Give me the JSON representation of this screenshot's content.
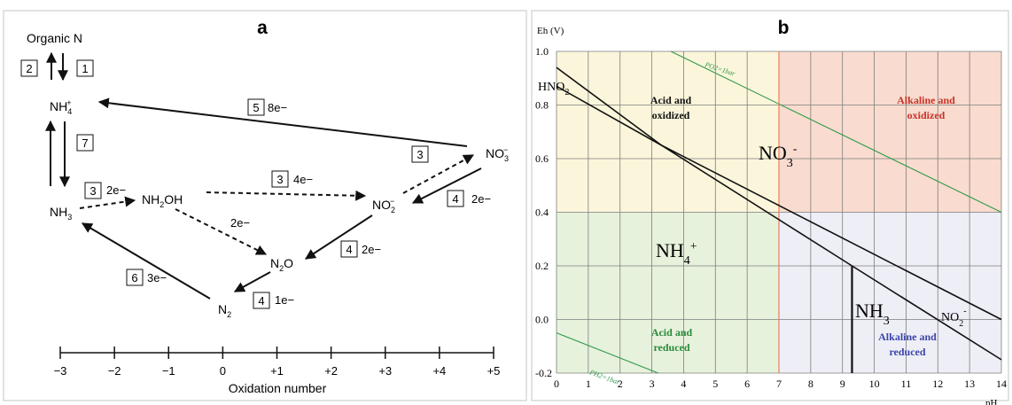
{
  "panel_a": {
    "label": "a",
    "organic_n": "Organic N",
    "nodes": {
      "nh4": {
        "base": "NH",
        "sub": "4",
        "sup": "+"
      },
      "nh3": {
        "base": "NH",
        "sub": "3"
      },
      "nh2oh": {
        "pre": "NH",
        "sub": "2",
        "post": "OH"
      },
      "no2": {
        "base": "NO",
        "sub": "2",
        "sup": "−"
      },
      "no3": {
        "base": "NO",
        "sub": "3",
        "sup": "−"
      },
      "n2o": {
        "pre": "N",
        "sub": "2",
        "post": "O"
      },
      "n2": {
        "base": "N",
        "sub": "2"
      }
    },
    "step_boxes": {
      "s2_org": "2",
      "s1_org": "1",
      "s5": "5",
      "s7": "7",
      "s3_nh3": "3",
      "s3_nh2oh": "3",
      "s3_no2": "3",
      "s4_no3": "4",
      "s4_no2": "4",
      "s4_n2o": "4",
      "s6": "6"
    },
    "electron_labels": {
      "e5": "8e−",
      "e3a": "2e−",
      "e3b": "4e−",
      "e_n2o": "2e−",
      "e4a": "2e−",
      "e4b": "2e−",
      "e4c": "1e−",
      "e6": "3e−"
    },
    "axis": {
      "ticks": [
        "−3",
        "−2",
        "−1",
        "0",
        "+1",
        "+2",
        "+3",
        "+4",
        "+5"
      ],
      "title": "Oxidation number"
    }
  },
  "panel_b": {
    "label": "b",
    "colors": {
      "acid_oxidized": "#fbf6db",
      "alkaline_oxidized": "#f9dccf",
      "acid_reduced": "#e7f2dd",
      "alkaline_reduced": "#eeeef7",
      "grid": "#7d7d7d",
      "water_line": "#2f9a4a",
      "neutral_line": "#f07a5a",
      "boundary": "#111111",
      "label_red": "#c8322a",
      "label_green": "#2c8a3a",
      "label_blue": "#3b45a8"
    },
    "chart_data": {
      "type": "line",
      "title": "",
      "xlabel": "pH",
      "ylabel": "Eh (V)",
      "xlim": [
        0,
        14
      ],
      "ylim": [
        -0.2,
        1.0
      ],
      "x_ticks": [
        "0",
        "1",
        "2",
        "3",
        "4",
        "5",
        "6",
        "7",
        "8",
        "9",
        "10",
        "11",
        "12",
        "13",
        "14"
      ],
      "y_ticks": [
        "-0.2",
        "0.0",
        "0.2",
        "0.4",
        "0.6",
        "0.8",
        "1.0"
      ],
      "grid": true,
      "regions": [
        {
          "name": "Acid and oxidized",
          "x": [
            0,
            7
          ],
          "y": [
            0.4,
            1.0
          ]
        },
        {
          "name": "Alkaline and oxidized",
          "x": [
            7,
            14
          ],
          "y": [
            0.4,
            1.0
          ]
        },
        {
          "name": "Acid and reduced",
          "x": [
            0,
            7
          ],
          "y": [
            -0.2,
            0.4
          ]
        },
        {
          "name": "Alkaline and reduced",
          "x": [
            7,
            14
          ],
          "y": [
            -0.2,
            0.4
          ]
        }
      ],
      "lines": [
        {
          "id": "po2",
          "label": "PO2=1bar",
          "points": [
            [
              3.6,
              1.0
            ],
            [
              14,
              0.4
            ]
          ]
        },
        {
          "id": "ph2",
          "label": "PH2=1bar",
          "points": [
            [
              0,
              -0.05
            ],
            [
              3.2,
              -0.2
            ]
          ]
        },
        {
          "id": "neutral",
          "points": [
            [
              7,
              -0.2
            ],
            [
              7,
              1.0
            ]
          ]
        },
        {
          "id": "hno2_no3_upper",
          "points": [
            [
              0,
              0.94
            ],
            [
              3.3,
              0.65
            ]
          ]
        },
        {
          "id": "hno2_no3_lower",
          "points": [
            [
              0,
              0.87
            ],
            [
              3.3,
              0.65
            ]
          ]
        },
        {
          "id": "no3_nh4",
          "points": [
            [
              3.3,
              0.65
            ],
            [
              9.3,
              0.2
            ]
          ]
        },
        {
          "id": "no3_no2",
          "points": [
            [
              3.3,
              0.65
            ],
            [
              14,
              0.0
            ]
          ]
        },
        {
          "id": "no2_nh3",
          "points": [
            [
              9.3,
              0.2
            ],
            [
              14,
              -0.15
            ]
          ]
        },
        {
          "id": "nh4_nh3",
          "points": [
            [
              9.3,
              0.2
            ],
            [
              9.3,
              -0.2
            ]
          ]
        }
      ],
      "species": {
        "no3": {
          "base": "NO",
          "sub": "3",
          "sup": "-"
        },
        "nh4": {
          "base": "NH",
          "sub": "4",
          "sup": "+"
        },
        "nh3": {
          "base": "NH",
          "sub": "3"
        },
        "no2": {
          "base": "NO",
          "sub": "2",
          "sup": "-"
        },
        "hno2": {
          "base": "HNO",
          "sub": "2"
        }
      },
      "region_labels": {
        "acid_ox_1": "Acid and",
        "acid_ox_2": "oxidized",
        "alk_ox_1": "Alkaline and",
        "alk_ox_2": "oxidized",
        "acid_red_1": "Acid and",
        "acid_red_2": "reduced",
        "alk_red_1": "Alkaline and",
        "alk_red_2": "reduced"
      }
    }
  }
}
